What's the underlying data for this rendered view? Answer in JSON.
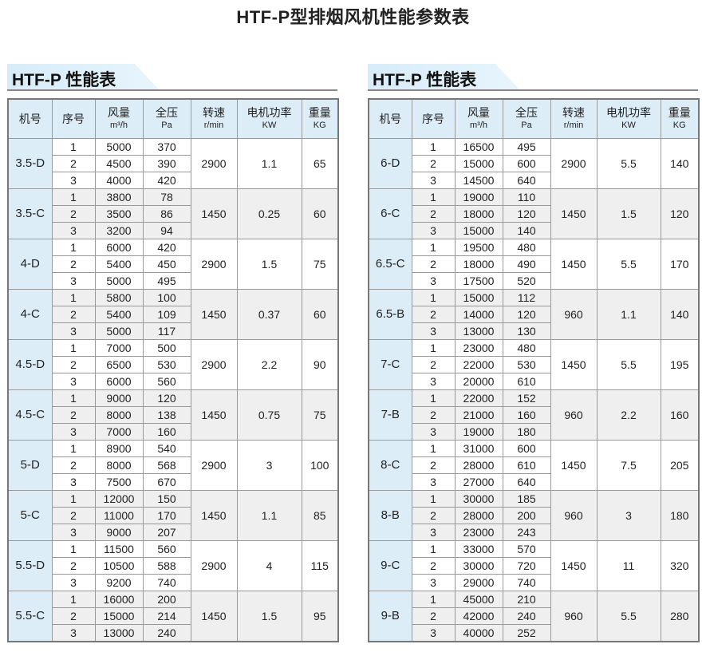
{
  "title": "HTF-P型排烟风机性能参数表",
  "colors": {
    "header_bg": "#dcedf8",
    "alt_row_bg": "#efefef"
  },
  "headers": [
    {
      "label": "机号",
      "unit": ""
    },
    {
      "label": "序号",
      "unit": ""
    },
    {
      "label": "风量",
      "unit": "m³/h"
    },
    {
      "label": "全压",
      "unit": "Pa"
    },
    {
      "label": "转速",
      "unit": "r/min"
    },
    {
      "label": "电机功率",
      "unit": "KW"
    },
    {
      "label": "重量",
      "unit": "KG"
    }
  ],
  "tables": [
    {
      "banner": "HTF-P 性能表",
      "groups": [
        {
          "model": "3.5-D",
          "rows": [
            [
              "1",
              "5000",
              "370"
            ],
            [
              "2",
              "4500",
              "390"
            ],
            [
              "3",
              "4000",
              "420"
            ]
          ],
          "speed": "2900",
          "power": "1.1",
          "weight": "65"
        },
        {
          "model": "3.5-C",
          "rows": [
            [
              "1",
              "3800",
              "78"
            ],
            [
              "2",
              "3500",
              "86"
            ],
            [
              "3",
              "3200",
              "94"
            ]
          ],
          "speed": "1450",
          "power": "0.25",
          "weight": "60"
        },
        {
          "model": "4-D",
          "rows": [
            [
              "1",
              "6000",
              "420"
            ],
            [
              "2",
              "5400",
              "450"
            ],
            [
              "3",
              "5000",
              "495"
            ]
          ],
          "speed": "2900",
          "power": "1.5",
          "weight": "75"
        },
        {
          "model": "4-C",
          "rows": [
            [
              "1",
              "5800",
              "100"
            ],
            [
              "2",
              "5400",
              "109"
            ],
            [
              "3",
              "5000",
              "117"
            ]
          ],
          "speed": "1450",
          "power": "0.37",
          "weight": "60"
        },
        {
          "model": "4.5-D",
          "rows": [
            [
              "1",
              "7000",
              "500"
            ],
            [
              "2",
              "6500",
              "530"
            ],
            [
              "3",
              "6000",
              "560"
            ]
          ],
          "speed": "2900",
          "power": "2.2",
          "weight": "90"
        },
        {
          "model": "4.5-C",
          "rows": [
            [
              "1",
              "9000",
              "120"
            ],
            [
              "2",
              "8000",
              "138"
            ],
            [
              "3",
              "7000",
              "160"
            ]
          ],
          "speed": "1450",
          "power": "0.75",
          "weight": "75"
        },
        {
          "model": "5-D",
          "rows": [
            [
              "1",
              "8900",
              "540"
            ],
            [
              "2",
              "8000",
              "568"
            ],
            [
              "3",
              "7500",
              "670"
            ]
          ],
          "speed": "2900",
          "power": "3",
          "weight": "100"
        },
        {
          "model": "5-C",
          "rows": [
            [
              "1",
              "12000",
              "150"
            ],
            [
              "2",
              "11000",
              "170"
            ],
            [
              "3",
              "9000",
              "207"
            ]
          ],
          "speed": "1450",
          "power": "1.1",
          "weight": "85"
        },
        {
          "model": "5.5-D",
          "rows": [
            [
              "1",
              "11500",
              "560"
            ],
            [
              "2",
              "10500",
              "588"
            ],
            [
              "3",
              "9200",
              "740"
            ]
          ],
          "speed": "2900",
          "power": "4",
          "weight": "115"
        },
        {
          "model": "5.5-C",
          "rows": [
            [
              "1",
              "16000",
              "200"
            ],
            [
              "2",
              "15000",
              "214"
            ],
            [
              "3",
              "13000",
              "240"
            ]
          ],
          "speed": "1450",
          "power": "1.5",
          "weight": "95"
        }
      ]
    },
    {
      "banner": "HTF-P 性能表",
      "groups": [
        {
          "model": "6-D",
          "rows": [
            [
              "1",
              "16500",
              "495"
            ],
            [
              "2",
              "15000",
              "600"
            ],
            [
              "3",
              "14500",
              "640"
            ]
          ],
          "speed": "2900",
          "power": "5.5",
          "weight": "140"
        },
        {
          "model": "6-C",
          "rows": [
            [
              "1",
              "19000",
              "110"
            ],
            [
              "2",
              "18000",
              "120"
            ],
            [
              "3",
              "15000",
              "140"
            ]
          ],
          "speed": "1450",
          "power": "1.5",
          "weight": "120"
        },
        {
          "model": "6.5-C",
          "rows": [
            [
              "1",
              "19500",
              "480"
            ],
            [
              "2",
              "18000",
              "490"
            ],
            [
              "3",
              "17500",
              "520"
            ]
          ],
          "speed": "1450",
          "power": "5.5",
          "weight": "170"
        },
        {
          "model": "6.5-B",
          "rows": [
            [
              "1",
              "15000",
              "112"
            ],
            [
              "2",
              "14000",
              "120"
            ],
            [
              "3",
              "13000",
              "130"
            ]
          ],
          "speed": "960",
          "power": "1.1",
          "weight": "140"
        },
        {
          "model": "7-C",
          "rows": [
            [
              "1",
              "23000",
              "480"
            ],
            [
              "2",
              "22000",
              "530"
            ],
            [
              "3",
              "20000",
              "610"
            ]
          ],
          "speed": "1450",
          "power": "5.5",
          "weight": "195"
        },
        {
          "model": "7-B",
          "rows": [
            [
              "1",
              "22000",
              "152"
            ],
            [
              "2",
              "21000",
              "160"
            ],
            [
              "3",
              "19000",
              "180"
            ]
          ],
          "speed": "960",
          "power": "2.2",
          "weight": "160"
        },
        {
          "model": "8-C",
          "rows": [
            [
              "1",
              "31000",
              "600"
            ],
            [
              "2",
              "28000",
              "610"
            ],
            [
              "3",
              "27000",
              "640"
            ]
          ],
          "speed": "1450",
          "power": "7.5",
          "weight": "205"
        },
        {
          "model": "8-B",
          "rows": [
            [
              "1",
              "30000",
              "185"
            ],
            [
              "2",
              "28000",
              "200"
            ],
            [
              "3",
              "23000",
              "243"
            ]
          ],
          "speed": "960",
          "power": "3",
          "weight": "180"
        },
        {
          "model": "9-C",
          "rows": [
            [
              "1",
              "33000",
              "570"
            ],
            [
              "2",
              "30000",
              "720"
            ],
            [
              "3",
              "29000",
              "740"
            ]
          ],
          "speed": "1450",
          "power": "11",
          "weight": "320"
        },
        {
          "model": "9-B",
          "rows": [
            [
              "1",
              "45000",
              "210"
            ],
            [
              "2",
              "42000",
              "240"
            ],
            [
              "3",
              "40000",
              "252"
            ]
          ],
          "speed": "960",
          "power": "5.5",
          "weight": "280"
        }
      ]
    }
  ]
}
